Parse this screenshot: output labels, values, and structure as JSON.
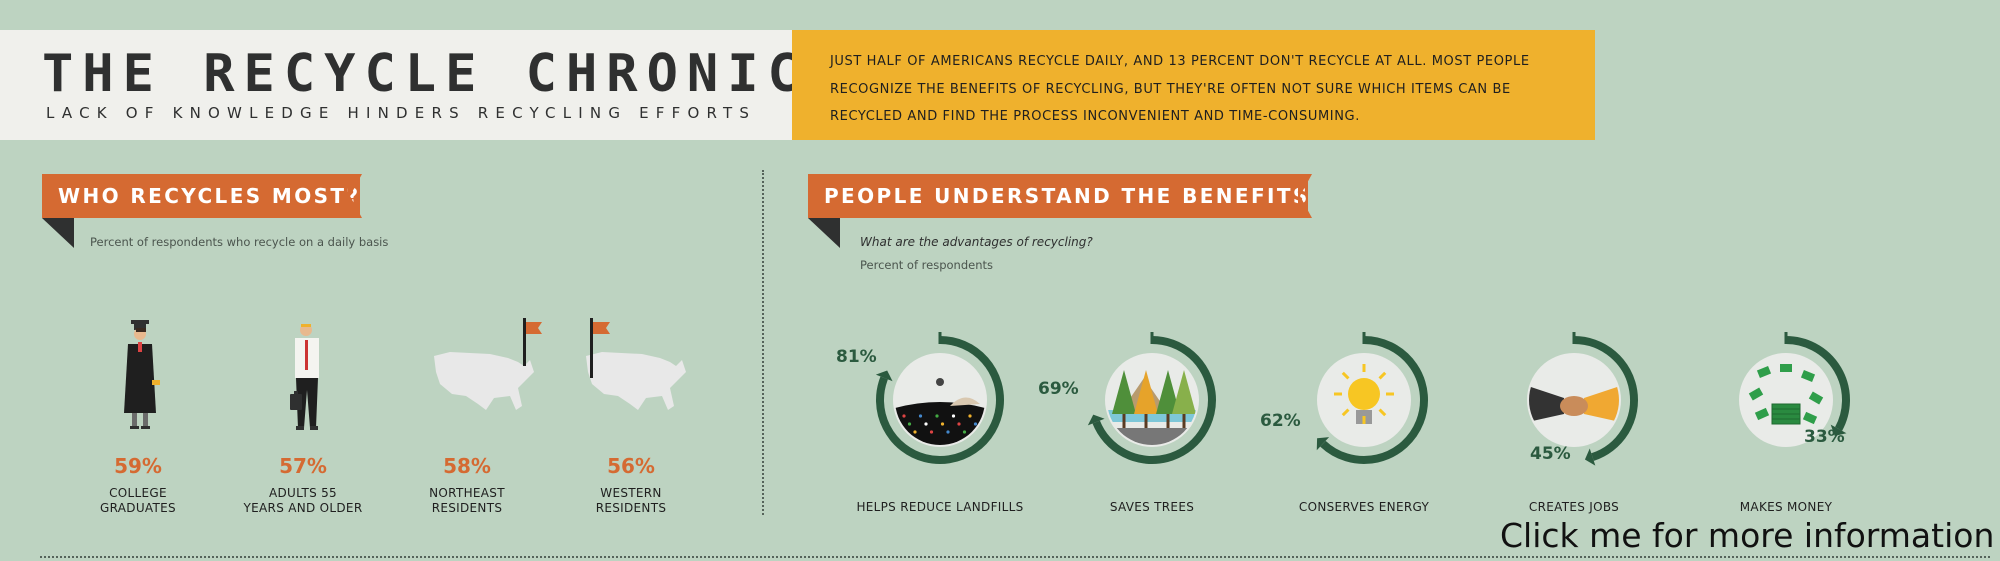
{
  "header": {
    "title": "THE RECYCLE CHRONICLES",
    "subtitle": "LACK OF KNOWLEDGE HINDERS RECYCLING EFFORTS",
    "intro_lines": [
      "JUST HALF OF AMERICANS RECYCLE DAILY, AND 13 PERCENT DON'T RECYCLE AT ALL. MOST PEOPLE",
      "RECOGNIZE THE BENEFITS OF RECYCLING, BUT THEY'RE OFTEN NOT SURE WHICH ITEMS CAN BE",
      "RECYCLED AND FIND THE PROCESS INCONVENIENT AND TIME-CONSUMING."
    ]
  },
  "who": {
    "heading": "WHO RECYCLES MOST?",
    "caption": "Percent of respondents who recycle on a daily basis",
    "groups": [
      {
        "value": "59%",
        "label1": "COLLEGE",
        "label2": "GRADUATES",
        "icon": "graduate-icon"
      },
      {
        "value": "57%",
        "label1": "ADULTS 55",
        "label2": "YEARS AND OLDER",
        "icon": "older-adult-icon"
      },
      {
        "value": "58%",
        "label1": "NORTHEAST",
        "label2": "RESIDENTS",
        "icon": "us-map-northeast-flag-icon"
      },
      {
        "value": "56%",
        "label1": "WESTERN",
        "label2": "RESIDENTS",
        "icon": "us-map-west-flag-icon"
      }
    ]
  },
  "benefits": {
    "heading": "PEOPLE UNDERSTAND THE BENEFITS",
    "question": "What are the advantages of recycling?",
    "caption": "Percent of respondents",
    "items": [
      {
        "label": "HELPS REDUCE LANDFILLS",
        "value_text": "81%",
        "value": 81,
        "icon": "landfill-icon"
      },
      {
        "label": "SAVES TREES",
        "value_text": "69%",
        "value": 69,
        "icon": "trees-icon"
      },
      {
        "label": "CONSERVES ENERGY",
        "value_text": "62%",
        "value": 62,
        "icon": "lightbulb-icon"
      },
      {
        "label": "CREATES JOBS",
        "value_text": "45%",
        "value": 45,
        "icon": "handshake-icon"
      },
      {
        "label": "MAKES MONEY",
        "value_text": "33%",
        "value": 33,
        "icon": "money-icon"
      }
    ]
  },
  "footer": {
    "more_info": "Click me for more information"
  },
  "colors": {
    "background": "#bdd3c1",
    "accent_orange": "#d56a32",
    "accent_yellow": "#efb12d",
    "ring_green": "#2b5a3f",
    "dark": "#2f3030"
  }
}
